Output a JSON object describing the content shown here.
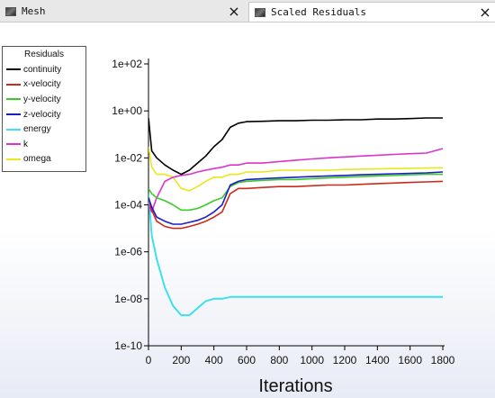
{
  "tabs": [
    {
      "title": "Mesh",
      "close": "×"
    },
    {
      "title": "Scaled Residuals",
      "close": "×"
    }
  ],
  "legend": {
    "title": "Residuals"
  },
  "chart_data": {
    "type": "line",
    "xlabel": "Iterations",
    "ylabel": "",
    "yscale": "log",
    "xlim": [
      0,
      1800
    ],
    "ylim": [
      1e-10,
      100
    ],
    "x_ticks": [
      0,
      200,
      400,
      600,
      800,
      1000,
      1200,
      1400,
      1600,
      1800
    ],
    "y_ticks": [
      100,
      1,
      0.01,
      0.0001,
      1e-06,
      1e-08,
      1e-10
    ],
    "y_tick_labels": [
      "1e+02",
      "1e+00",
      "1e-02",
      "1e-04",
      "1e-06",
      "1e-08",
      "1e-10"
    ],
    "legend_position": "top-left",
    "series": [
      {
        "name": "continuity",
        "color": "#000000",
        "x": [
          0,
          20,
          50,
          100,
          150,
          200,
          250,
          300,
          350,
          400,
          450,
          500,
          550,
          600,
          700,
          800,
          900,
          1000,
          1100,
          1200,
          1300,
          1400,
          1500,
          1600,
          1700,
          1800
        ],
        "y": [
          0.5,
          0.02,
          0.01,
          0.005,
          0.003,
          0.002,
          0.003,
          0.006,
          0.012,
          0.03,
          0.06,
          0.2,
          0.3,
          0.35,
          0.36,
          0.38,
          0.38,
          0.4,
          0.4,
          0.42,
          0.42,
          0.45,
          0.45,
          0.47,
          0.5,
          0.5
        ]
      },
      {
        "name": "x-velocity",
        "color": "#cc2a1a",
        "x": [
          0,
          20,
          50,
          100,
          150,
          200,
          250,
          300,
          350,
          400,
          450,
          500,
          550,
          600,
          700,
          800,
          900,
          1000,
          1100,
          1200,
          1300,
          1400,
          1500,
          1600,
          1700,
          1800
        ],
        "y": [
          0.0002,
          6e-05,
          2e-05,
          1.2e-05,
          1e-05,
          1e-05,
          1.2e-05,
          1.5e-05,
          2e-05,
          3e-05,
          5e-05,
          0.0003,
          0.0005,
          0.0005,
          0.00055,
          0.0006,
          0.0006,
          0.00065,
          0.0007,
          0.0007,
          0.00075,
          0.0008,
          0.00085,
          0.0009,
          0.00095,
          0.001
        ]
      },
      {
        "name": "y-velocity",
        "color": "#3ccc2a",
        "x": [
          0,
          20,
          50,
          100,
          150,
          200,
          250,
          300,
          350,
          400,
          450,
          500,
          550,
          600,
          700,
          800,
          900,
          1000,
          1100,
          1200,
          1300,
          1400,
          1500,
          1600,
          1700,
          1800
        ],
        "y": [
          0.0005,
          0.0003,
          0.0002,
          0.00015,
          0.0001,
          6e-05,
          6e-05,
          7e-05,
          0.0001,
          0.00015,
          0.0002,
          0.0006,
          0.0009,
          0.001,
          0.0011,
          0.0012,
          0.0012,
          0.0013,
          0.0014,
          0.0015,
          0.0016,
          0.0017,
          0.0018,
          0.0019,
          0.002,
          0.002
        ]
      },
      {
        "name": "z-velocity",
        "color": "#1c1cc8",
        "x": [
          0,
          20,
          50,
          100,
          150,
          200,
          250,
          300,
          350,
          400,
          450,
          500,
          550,
          600,
          700,
          800,
          900,
          1000,
          1100,
          1200,
          1300,
          1400,
          1500,
          1600,
          1700,
          1800
        ],
        "y": [
          0.0002,
          8e-05,
          3e-05,
          2e-05,
          1.5e-05,
          1.5e-05,
          1.8e-05,
          2.2e-05,
          3e-05,
          5e-05,
          0.0001,
          0.0007,
          0.001,
          0.0012,
          0.0013,
          0.0014,
          0.0015,
          0.0016,
          0.0017,
          0.0018,
          0.0019,
          0.002,
          0.0021,
          0.0022,
          0.0023,
          0.0025
        ]
      },
      {
        "name": "energy",
        "color": "#3ce0ee",
        "x": [
          0,
          20,
          50,
          100,
          150,
          200,
          250,
          300,
          350,
          400,
          450,
          500,
          550,
          600,
          700,
          800,
          900,
          1000,
          1100,
          1200,
          1300,
          1400,
          1500,
          1600,
          1700,
          1800
        ],
        "y": [
          0.0003,
          5e-06,
          5e-07,
          3e-08,
          5e-09,
          2e-09,
          2e-09,
          4e-09,
          8e-09,
          1e-08,
          1e-08,
          1.2e-08,
          1.2e-08,
          1.2e-08,
          1.2e-08,
          1.2e-08,
          1.2e-08,
          1.2e-08,
          1.2e-08,
          1.2e-08,
          1.2e-08,
          1.2e-08,
          1.2e-08,
          1.2e-08,
          1.2e-08,
          1.2e-08
        ]
      },
      {
        "name": "k",
        "color": "#dd33cc",
        "x": [
          0,
          20,
          50,
          100,
          150,
          200,
          250,
          300,
          350,
          400,
          450,
          500,
          550,
          600,
          700,
          800,
          900,
          1000,
          1100,
          1200,
          1300,
          1400,
          1500,
          1600,
          1700,
          1800
        ],
        "y": [
          0.0001,
          5e-05,
          0.0002,
          0.001,
          0.0015,
          0.0018,
          0.002,
          0.0025,
          0.003,
          0.0035,
          0.004,
          0.005,
          0.005,
          0.006,
          0.006,
          0.007,
          0.008,
          0.009,
          0.01,
          0.011,
          0.012,
          0.013,
          0.014,
          0.015,
          0.016,
          0.025
        ]
      },
      {
        "name": "omega",
        "color": "#e8e81a",
        "x": [
          0,
          20,
          50,
          100,
          150,
          200,
          250,
          300,
          350,
          400,
          450,
          500,
          550,
          600,
          700,
          800,
          900,
          1000,
          1100,
          1200,
          1300,
          1400,
          1500,
          1600,
          1700,
          1800
        ],
        "y": [
          0.03,
          0.004,
          0.002,
          0.002,
          0.0015,
          0.0005,
          0.0004,
          0.0006,
          0.001,
          0.0015,
          0.0015,
          0.002,
          0.002,
          0.0025,
          0.0025,
          0.003,
          0.003,
          0.003,
          0.003,
          0.0032,
          0.0033,
          0.0034,
          0.0035,
          0.0036,
          0.0037,
          0.0038
        ]
      }
    ]
  }
}
